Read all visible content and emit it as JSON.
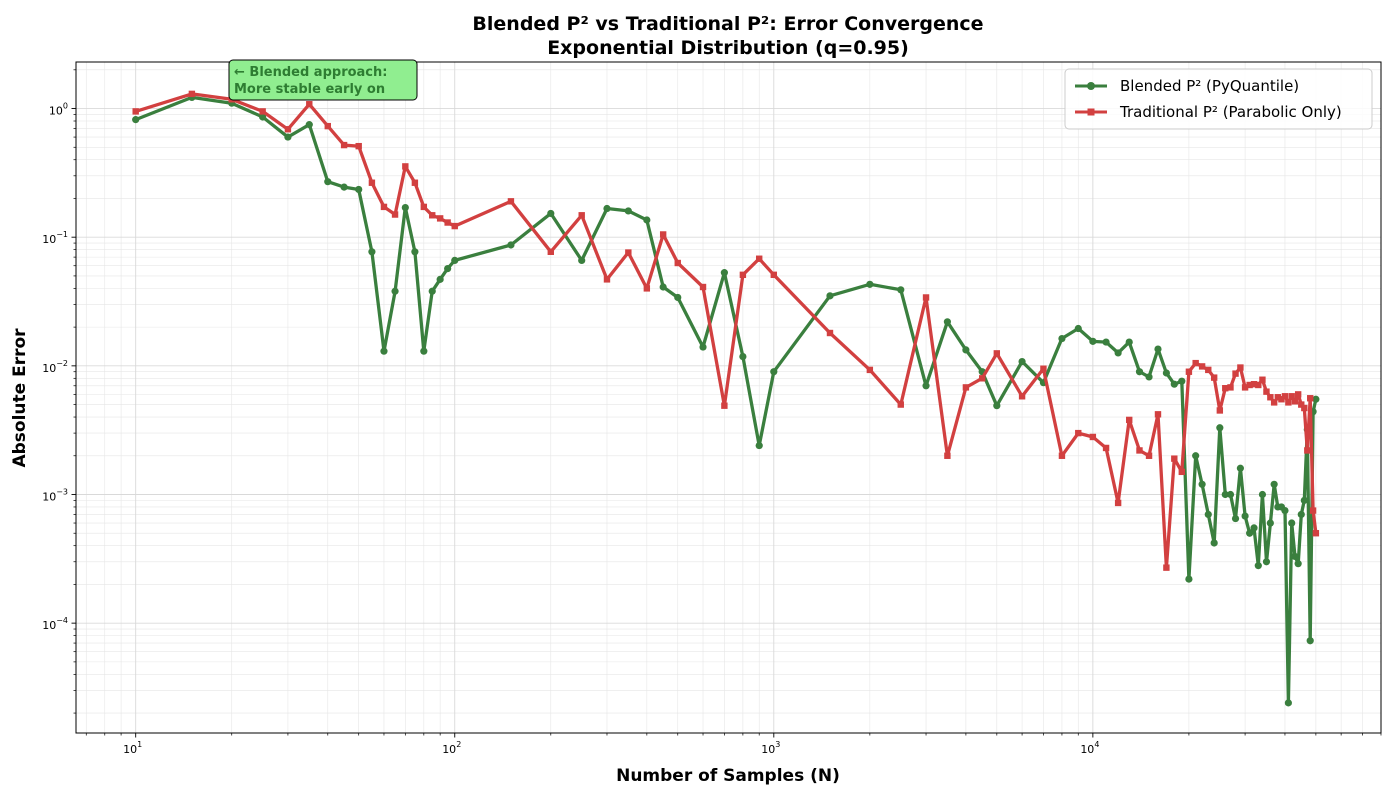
{
  "chart_data": {
    "type": "line",
    "title": [
      "Blended P² vs Traditional P²: Error Convergence",
      "Exponential Distribution (q=0.95)"
    ],
    "xlabel": "Number of Samples (N)",
    "ylabel": "Absolute Error",
    "xscale": "log",
    "yscale": "log",
    "xlim": [
      6.5,
      80000
    ],
    "ylim": [
      1.4e-05,
      2.3
    ],
    "xticks": [
      {
        "value": 10,
        "base": "10",
        "exp": "1"
      },
      {
        "value": 100,
        "base": "10",
        "exp": "2"
      },
      {
        "value": 1000,
        "base": "10",
        "exp": "3"
      },
      {
        "value": 10000,
        "base": "10",
        "exp": "4"
      }
    ],
    "yticks": [
      {
        "value": 0.0001,
        "base": "10",
        "exp": "−4"
      },
      {
        "value": 0.001,
        "base": "10",
        "exp": "−3"
      },
      {
        "value": 0.01,
        "base": "10",
        "exp": "−2"
      },
      {
        "value": 0.1,
        "base": "10",
        "exp": "−1"
      },
      {
        "value": 1,
        "base": "10",
        "exp": "0"
      }
    ],
    "grid": true,
    "legend_position": "top-right",
    "series": [
      {
        "name": "Blended P² (PyQuantile)",
        "color": "#3a7f3e",
        "marker": "circle",
        "x": [
          10,
          15,
          20,
          25,
          30,
          35,
          40,
          45,
          50,
          55,
          60,
          65,
          70,
          75,
          80,
          85,
          90,
          95,
          100,
          150,
          200,
          250,
          300,
          350,
          400,
          450,
          500,
          600,
          700,
          800,
          900,
          1000,
          1500,
          2000,
          2500,
          3000,
          3500,
          4000,
          4500,
          5000,
          6000,
          7000,
          8000,
          9000,
          10000,
          11000,
          12000,
          13000,
          14000,
          15000,
          16000,
          17000,
          18000,
          19000,
          20000,
          21000,
          22000,
          23000,
          24000,
          25000,
          26000,
          27000,
          28000,
          29000,
          30000,
          31000,
          32000,
          33000,
          34000,
          35000,
          36000,
          37000,
          38000,
          39000,
          40000,
          41000,
          42000,
          43000,
          44000,
          45000,
          46000,
          47000,
          48000,
          49000,
          50000
        ],
        "values": [
          0.82,
          1.22,
          1.1,
          0.86,
          0.6,
          0.75,
          0.27,
          0.245,
          0.235,
          0.077,
          0.013,
          0.038,
          0.17,
          0.077,
          0.013,
          0.038,
          0.047,
          0.057,
          0.066,
          0.087,
          0.153,
          0.066,
          0.167,
          0.16,
          0.136,
          0.041,
          0.034,
          0.014,
          0.053,
          0.0118,
          0.0024,
          0.009,
          0.035,
          0.043,
          0.039,
          0.007,
          0.022,
          0.0133,
          0.009,
          0.0049,
          0.0108,
          0.0074,
          0.0163,
          0.0195,
          0.0155,
          0.0153,
          0.0126,
          0.0153,
          0.009,
          0.0082,
          0.0135,
          0.0088,
          0.0072,
          0.0076,
          0.00022,
          0.002,
          0.0012,
          0.0007,
          0.00042,
          0.0033,
          0.001,
          0.001,
          0.00065,
          0.0016,
          0.00068,
          0.0005,
          0.00055,
          0.00028,
          0.001,
          0.0003,
          0.0006,
          0.0012,
          0.0008,
          0.0008,
          0.00075,
          2.4e-05,
          0.0006,
          0.00033,
          0.00029,
          0.0007,
          0.0009,
          0.0032,
          7.3e-05,
          0.0044,
          0.0055
        ]
      },
      {
        "name": "Traditional P² (Parabolic Only)",
        "color": "#d24040",
        "marker": "square",
        "x": [
          10,
          15,
          20,
          25,
          30,
          35,
          40,
          45,
          50,
          55,
          60,
          65,
          70,
          75,
          80,
          85,
          90,
          95,
          100,
          150,
          200,
          250,
          300,
          350,
          400,
          450,
          500,
          600,
          700,
          800,
          900,
          1000,
          1500,
          2000,
          2500,
          3000,
          3500,
          4000,
          4500,
          5000,
          6000,
          7000,
          8000,
          9000,
          10000,
          11000,
          12000,
          13000,
          14000,
          15000,
          16000,
          17000,
          18000,
          19000,
          20000,
          21000,
          22000,
          23000,
          24000,
          25000,
          26000,
          27000,
          28000,
          29000,
          30000,
          31000,
          32000,
          33000,
          34000,
          35000,
          36000,
          37000,
          38000,
          39000,
          40000,
          41000,
          42000,
          43000,
          44000,
          45000,
          46000,
          47000,
          48000,
          49000,
          50000
        ],
        "values": [
          0.95,
          1.3,
          1.18,
          0.95,
          0.69,
          1.08,
          0.73,
          0.52,
          0.51,
          0.265,
          0.172,
          0.15,
          0.355,
          0.265,
          0.172,
          0.148,
          0.14,
          0.13,
          0.122,
          0.19,
          0.077,
          0.148,
          0.047,
          0.076,
          0.04,
          0.105,
          0.063,
          0.041,
          0.0049,
          0.051,
          0.068,
          0.051,
          0.018,
          0.0093,
          0.005,
          0.034,
          0.002,
          0.0068,
          0.008,
          0.0125,
          0.0058,
          0.0095,
          0.002,
          0.003,
          0.0028,
          0.0023,
          0.00086,
          0.0038,
          0.0022,
          0.002,
          0.0042,
          0.00027,
          0.0019,
          0.0015,
          0.009,
          0.0105,
          0.0099,
          0.0093,
          0.0081,
          0.0045,
          0.0067,
          0.0068,
          0.0087,
          0.0097,
          0.0068,
          0.0071,
          0.0072,
          0.0071,
          0.0078,
          0.0063,
          0.0057,
          0.0052,
          0.0057,
          0.0055,
          0.0058,
          0.0052,
          0.0058,
          0.0053,
          0.006,
          0.005,
          0.0047,
          0.0022,
          0.0056,
          0.00075,
          0.0005
        ]
      }
    ],
    "annotation": {
      "lines": [
        "← Blended approach:",
        "More stable early on"
      ],
      "background": "#90ee90",
      "text_color": "#2e7d32"
    }
  }
}
